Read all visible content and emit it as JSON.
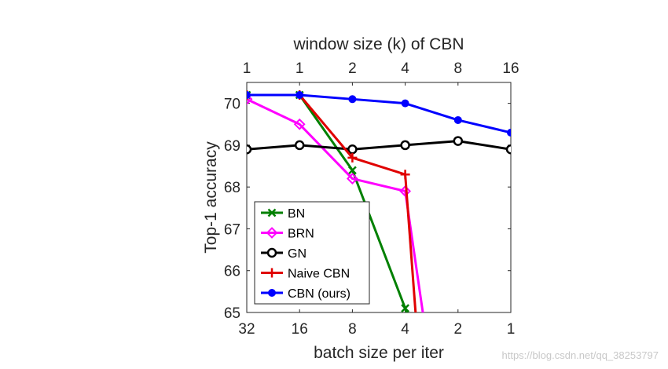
{
  "watermark": "https://blog.csdn.net/qq_38253797",
  "chart_data": {
    "type": "line",
    "xlabel": "batch size per iter",
    "ylabel": "Top-1 accuracy",
    "top_xlabel": "window size (k) of CBN",
    "x_tick_labels": [
      "32",
      "16",
      "8",
      "4",
      "2",
      "1"
    ],
    "top_tick_labels": [
      "1",
      "1",
      "2",
      "4",
      "8",
      "16"
    ],
    "ylim": [
      65,
      70.5
    ],
    "y_ticks": [
      65,
      66,
      67,
      68,
      69,
      70
    ],
    "grid": false,
    "legend_position": "bottom-left",
    "series": [
      {
        "name": "BN",
        "color": "#008000",
        "marker": "x",
        "points": [
          [
            0,
            70.2
          ],
          [
            1,
            70.2
          ],
          [
            2,
            68.4
          ],
          [
            3,
            65.1
          ],
          [
            3.12,
            64.6
          ]
        ]
      },
      {
        "name": "BRN",
        "color": "#ff00ff",
        "marker": "diamond",
        "points": [
          [
            0,
            70.1
          ],
          [
            1,
            69.5
          ],
          [
            2,
            68.2
          ],
          [
            3,
            67.9
          ],
          [
            3.38,
            64.6
          ]
        ]
      },
      {
        "name": "GN",
        "color": "#000000",
        "marker": "circle-open",
        "points": [
          [
            0,
            68.9
          ],
          [
            1,
            69.0
          ],
          [
            2,
            68.9
          ],
          [
            3,
            69.0
          ],
          [
            4,
            69.1
          ],
          [
            5,
            68.9
          ]
        ]
      },
      {
        "name": "Naive CBN",
        "color": "#e00000",
        "marker": "plus",
        "points": [
          [
            0,
            70.2
          ],
          [
            1,
            70.2
          ],
          [
            2,
            68.7
          ],
          [
            3,
            68.3
          ],
          [
            3.22,
            64.6
          ]
        ]
      },
      {
        "name": "CBN (ours)",
        "color": "#0000ff",
        "marker": "circle-filled",
        "points": [
          [
            0,
            70.2
          ],
          [
            1,
            70.2
          ],
          [
            2,
            70.1
          ],
          [
            3,
            70.0
          ],
          [
            4,
            69.6
          ],
          [
            5,
            69.3
          ]
        ]
      }
    ]
  }
}
